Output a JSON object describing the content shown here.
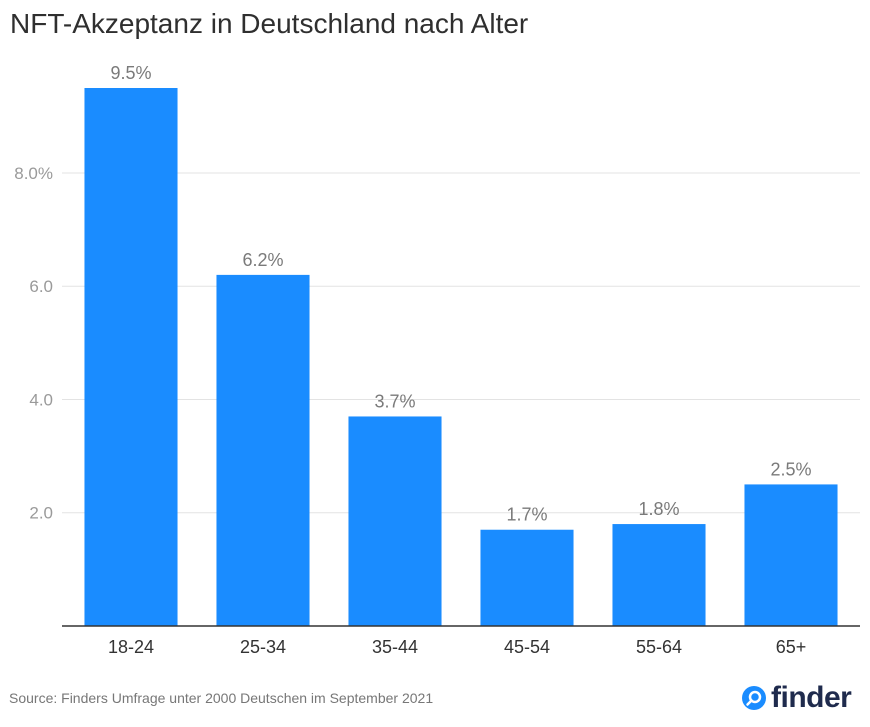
{
  "header": {
    "title": "NFT-Akzeptanz in Deutschland nach Alter"
  },
  "chart_data": {
    "type": "bar",
    "categories": [
      "18-24",
      "25-34",
      "35-44",
      "45-54",
      "55-64",
      "65+"
    ],
    "values": [
      9.5,
      6.2,
      3.7,
      1.7,
      1.8,
      2.5
    ],
    "data_labels": [
      "9.5%",
      "6.2%",
      "3.7%",
      "1.7%",
      "1.8%",
      "2.5%"
    ],
    "yticks": [
      2.0,
      4.0,
      6.0,
      8.0
    ],
    "ytick_labels": [
      "2.0",
      "4.0",
      "6.0",
      "8.0%"
    ],
    "ylim": [
      0,
      9.5
    ],
    "grid": true,
    "bar_color": "#1a8cff"
  },
  "footer": {
    "source": "Source: Finders Umfrage unter 2000 Deutschen im September 2021",
    "logo_text": "finder",
    "logo_color": "#1a8cff"
  }
}
